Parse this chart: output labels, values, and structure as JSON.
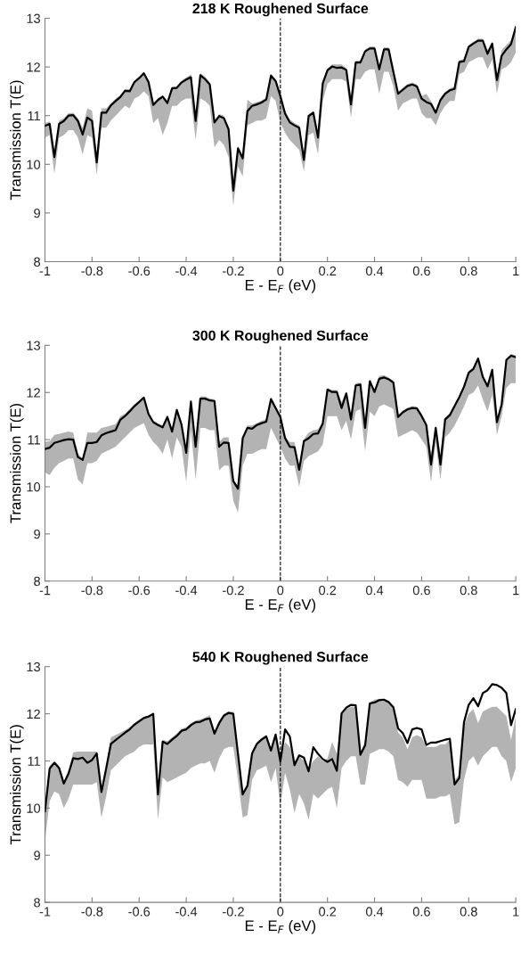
{
  "chart_data": [
    {
      "type": "line",
      "title": "218 K Roughened Surface",
      "xlabel": "E - E$_{F}$ (eV)",
      "ylabel": "Transmission T(E)",
      "x": [
        -1,
        -0.98,
        -0.96,
        -0.94,
        -0.92,
        -0.9,
        -0.88,
        -0.86,
        -0.84,
        -0.82,
        -0.8,
        -0.78,
        -0.76,
        -0.74,
        -0.72,
        -0.7,
        -0.68,
        -0.66,
        -0.64,
        -0.62,
        -0.6,
        -0.58,
        -0.56,
        -0.54,
        -0.52,
        -0.5,
        -0.48,
        -0.46,
        -0.44,
        -0.42,
        -0.4,
        -0.38,
        -0.36,
        -0.34,
        -0.32,
        -0.3,
        -0.28,
        -0.26,
        -0.24,
        -0.22,
        -0.2,
        -0.18,
        -0.16,
        -0.14,
        -0.12,
        -0.1,
        -0.08,
        -0.06,
        -0.04,
        -0.02,
        0,
        0.02,
        0.04,
        0.06,
        0.08,
        0.1,
        0.12,
        0.14,
        0.16,
        0.18,
        0.2,
        0.22,
        0.24,
        0.26,
        0.28,
        0.3,
        0.32,
        0.34,
        0.36,
        0.38,
        0.4,
        0.42,
        0.44,
        0.46,
        0.48,
        0.5,
        0.52,
        0.54,
        0.56,
        0.58,
        0.6,
        0.62,
        0.64,
        0.66,
        0.68,
        0.7,
        0.72,
        0.74,
        0.76,
        0.78,
        0.8,
        0.82,
        0.84,
        0.86,
        0.88,
        0.9,
        0.92,
        0.94,
        0.96,
        0.98,
        1
      ],
      "series": [
        {
          "color": "#000000",
          "values": [
            10.79,
            10.83,
            10.15,
            10.83,
            10.89,
            11.0,
            11.01,
            10.89,
            10.61,
            10.96,
            10.89,
            10.04,
            11.06,
            11.06,
            11.21,
            11.3,
            11.38,
            11.51,
            11.5,
            11.69,
            11.77,
            11.87,
            11.69,
            11.22,
            11.32,
            11.39,
            11.26,
            11.56,
            11.57,
            11.68,
            11.74,
            11.79,
            10.89,
            11.83,
            11.75,
            11.64,
            10.86,
            10.99,
            10.95,
            10.72,
            9.46,
            10.33,
            10.12,
            11.09,
            11.2,
            11.23,
            11.27,
            11.33,
            11.82,
            11.71,
            11.4,
            11.04,
            10.86,
            10.8,
            10.75,
            10.09,
            10.99,
            11.06,
            10.55,
            11.66,
            11.93,
            12.01,
            11.98,
            11.99,
            11.94,
            11.23,
            12.09,
            12.09,
            12.32,
            12.38,
            12.38,
            11.95,
            12.36,
            12.36,
            11.9,
            11.45,
            11.53,
            11.61,
            11.64,
            11.6,
            11.35,
            11.28,
            11.24,
            11.06,
            11.32,
            11.45,
            11.52,
            11.55,
            12.1,
            12.12,
            12.41,
            12.48,
            12.54,
            12.54,
            12.27,
            12.48,
            11.73,
            12.23,
            12.36,
            12.47,
            12.82
          ],
          "lower": [
            10.55,
            10.6,
            9.8,
            10.55,
            10.6,
            10.7,
            10.7,
            10.55,
            10.2,
            10.6,
            10.55,
            9.78,
            10.75,
            10.75,
            10.9,
            11.0,
            11.1,
            11.2,
            11.15,
            11.35,
            11.4,
            11.5,
            11.4,
            10.85,
            10.95,
            10.6,
            10.85,
            11.2,
            11.2,
            11.3,
            11.35,
            11.35,
            10.5,
            11.35,
            11.3,
            11.2,
            10.35,
            10.5,
            10.4,
            10.15,
            9.15,
            9.95,
            9.75,
            10.8,
            10.85,
            10.9,
            10.9,
            10.95,
            11.4,
            11.3,
            10.85,
            10.65,
            10.5,
            10.4,
            10.3,
            9.85,
            10.6,
            10.65,
            10.2,
            11.3,
            11.65,
            11.75,
            11.75,
            11.75,
            11.7,
            10.95,
            11.75,
            11.75,
            11.9,
            11.95,
            11.95,
            11.45,
            11.9,
            11.9,
            11.6,
            11.1,
            11.25,
            11.3,
            11.35,
            11.35,
            11.05,
            10.95,
            10.95,
            10.8,
            11.05,
            11.2,
            11.3,
            11.3,
            11.85,
            11.9,
            12.1,
            12.15,
            12.2,
            12.2,
            11.95,
            12.15,
            11.45,
            11.95,
            12.0,
            12.1,
            12.3
          ],
          "upper": [
            10.85,
            10.88,
            10.2,
            10.9,
            10.95,
            11.05,
            11.06,
            10.95,
            10.75,
            11.15,
            11.1,
            10.1,
            11.15,
            11.15,
            11.25,
            11.35,
            11.42,
            11.55,
            11.55,
            11.72,
            11.8,
            11.9,
            11.72,
            11.26,
            11.36,
            11.42,
            11.3,
            11.6,
            11.6,
            11.72,
            11.78,
            11.85,
            10.93,
            11.87,
            11.8,
            11.68,
            10.9,
            11.03,
            11.0,
            10.76,
            9.5,
            10.37,
            10.16,
            11.33,
            11.25,
            11.28,
            11.31,
            11.37,
            11.86,
            11.75,
            11.44,
            11.1,
            10.92,
            10.85,
            10.8,
            10.13,
            11.03,
            11.1,
            10.6,
            11.7,
            11.97,
            12.05,
            12.05,
            12.05,
            11.98,
            11.27,
            12.13,
            12.13,
            12.36,
            12.42,
            12.42,
            11.99,
            12.4,
            12.4,
            11.94,
            11.49,
            11.57,
            11.65,
            11.68,
            11.64,
            11.4,
            11.45,
            11.3,
            11.1,
            11.36,
            11.49,
            11.56,
            11.6,
            12.14,
            12.16,
            12.45,
            12.52,
            12.58,
            12.58,
            12.35,
            12.52,
            11.77,
            12.35,
            12.45,
            12.55,
            12.85
          ]
        }
      ],
      "xlim": [
        -1,
        1
      ],
      "ylim": [
        8,
        13
      ],
      "xticks": [
        -1,
        -0.8,
        -0.6,
        -0.4,
        -0.2,
        0,
        0.2,
        0.4,
        0.6,
        0.8,
        1
      ],
      "yticks": [
        8,
        9,
        10,
        11,
        12,
        13
      ],
      "ref_lines": [
        {
          "axis": "x",
          "value": 0,
          "color": "#000000",
          "line_style": "dashed"
        }
      ],
      "grid": false,
      "legend": false
    },
    {
      "type": "line",
      "title": "300 K Roughened Surface",
      "xlabel": "E - E$_{F}$ (eV)",
      "ylabel": "Transmission T(E)",
      "x": [
        -1,
        -0.98,
        -0.96,
        -0.94,
        -0.92,
        -0.9,
        -0.88,
        -0.86,
        -0.84,
        -0.82,
        -0.8,
        -0.78,
        -0.76,
        -0.74,
        -0.72,
        -0.7,
        -0.68,
        -0.66,
        -0.64,
        -0.62,
        -0.6,
        -0.58,
        -0.56,
        -0.54,
        -0.52,
        -0.5,
        -0.48,
        -0.46,
        -0.44,
        -0.42,
        -0.4,
        -0.38,
        -0.36,
        -0.34,
        -0.32,
        -0.3,
        -0.28,
        -0.26,
        -0.24,
        -0.22,
        -0.2,
        -0.18,
        -0.16,
        -0.14,
        -0.12,
        -0.1,
        -0.08,
        -0.06,
        -0.04,
        -0.02,
        0,
        0.02,
        0.04,
        0.06,
        0.08,
        0.1,
        0.12,
        0.14,
        0.16,
        0.18,
        0.2,
        0.22,
        0.24,
        0.26,
        0.28,
        0.3,
        0.32,
        0.34,
        0.36,
        0.38,
        0.4,
        0.42,
        0.44,
        0.46,
        0.48,
        0.5,
        0.52,
        0.54,
        0.56,
        0.58,
        0.6,
        0.62,
        0.64,
        0.66,
        0.68,
        0.7,
        0.72,
        0.74,
        0.76,
        0.78,
        0.8,
        0.82,
        0.84,
        0.86,
        0.88,
        0.9,
        0.92,
        0.94,
        0.96,
        0.98,
        1
      ],
      "series": [
        {
          "color": "#000000",
          "values": [
            10.8,
            10.83,
            10.93,
            10.96,
            10.99,
            11.01,
            11.0,
            10.63,
            10.57,
            10.93,
            10.93,
            10.95,
            11.09,
            11.14,
            11.17,
            11.2,
            11.42,
            11.5,
            11.6,
            11.71,
            11.8,
            11.89,
            11.54,
            11.37,
            11.31,
            11.26,
            11.48,
            11.17,
            11.63,
            11.32,
            10.72,
            11.81,
            10.85,
            11.87,
            11.87,
            11.83,
            11.82,
            10.85,
            10.94,
            10.93,
            10.12,
            9.96,
            11.03,
            11.25,
            11.23,
            11.31,
            11.35,
            11.38,
            11.86,
            11.67,
            11.48,
            11.03,
            10.85,
            10.84,
            10.36,
            10.97,
            11.03,
            11.12,
            11.13,
            11.34,
            12.06,
            12.01,
            12.01,
            11.67,
            11.98,
            11.43,
            12.15,
            12.17,
            11.25,
            12.24,
            12.01,
            12.29,
            12.32,
            12.28,
            12.21,
            11.48,
            11.58,
            11.64,
            11.67,
            11.66,
            11.5,
            11.31,
            10.47,
            11.25,
            10.47,
            11.43,
            11.52,
            11.71,
            11.9,
            12.12,
            12.42,
            12.5,
            12.72,
            12.33,
            12.13,
            12.48,
            11.37,
            11.75,
            12.69,
            12.78,
            12.75
          ],
          "lower": [
            10.3,
            10.25,
            10.4,
            10.5,
            10.55,
            10.6,
            10.6,
            10.15,
            10.05,
            10.5,
            10.5,
            10.55,
            10.7,
            10.75,
            10.8,
            10.85,
            10.95,
            11.05,
            11.15,
            11.25,
            11.3,
            11.35,
            11.1,
            10.95,
            10.85,
            10.7,
            11.0,
            10.6,
            11.05,
            10.85,
            10.1,
            11.2,
            10.15,
            11.25,
            11.25,
            11.2,
            11.2,
            10.35,
            10.45,
            10.45,
            9.7,
            9.45,
            10.45,
            10.7,
            10.7,
            10.75,
            10.8,
            10.8,
            11.25,
            11.05,
            10.85,
            10.6,
            10.45,
            10.45,
            10.0,
            10.55,
            10.65,
            10.7,
            10.75,
            10.9,
            11.5,
            11.5,
            11.5,
            11.2,
            11.4,
            11.0,
            11.6,
            11.65,
            10.75,
            11.6,
            11.5,
            11.7,
            11.75,
            11.7,
            11.65,
            11.05,
            11.1,
            11.15,
            11.2,
            11.15,
            11.0,
            10.85,
            10.1,
            10.95,
            10.15,
            11.05,
            11.15,
            11.3,
            11.5,
            11.7,
            11.95,
            12.0,
            12.15,
            11.85,
            11.6,
            11.95,
            11.1,
            11.5,
            12.1,
            12.2,
            12.2
          ],
          "upper": [
            10.95,
            10.97,
            11.1,
            11.12,
            11.15,
            11.17,
            11.15,
            10.7,
            10.6,
            11.15,
            11.15,
            11.15,
            11.25,
            11.27,
            11.3,
            11.33,
            11.5,
            11.55,
            11.65,
            11.75,
            11.83,
            11.92,
            11.57,
            11.4,
            11.35,
            11.3,
            11.52,
            11.22,
            11.67,
            11.36,
            10.76,
            11.85,
            10.89,
            11.92,
            11.92,
            11.87,
            11.86,
            10.95,
            11.05,
            11.05,
            10.16,
            10.0,
            11.07,
            11.3,
            11.3,
            11.35,
            11.4,
            11.43,
            11.9,
            11.71,
            11.52,
            11.07,
            10.95,
            10.95,
            10.4,
            11.01,
            11.15,
            11.2,
            11.22,
            11.38,
            12.1,
            12.05,
            12.05,
            11.8,
            12.02,
            11.47,
            12.2,
            12.21,
            11.29,
            12.28,
            12.05,
            12.35,
            12.37,
            12.32,
            12.25,
            11.52,
            11.62,
            11.68,
            11.71,
            11.7,
            11.54,
            11.35,
            10.7,
            11.29,
            10.7,
            11.47,
            11.56,
            11.75,
            11.94,
            12.16,
            12.46,
            12.54,
            12.76,
            12.37,
            12.17,
            12.52,
            11.41,
            11.79,
            12.73,
            12.82,
            12.79
          ]
        }
      ],
      "xlim": [
        -1,
        1
      ],
      "ylim": [
        8,
        13
      ],
      "xticks": [
        -1,
        -0.8,
        -0.6,
        -0.4,
        -0.2,
        0,
        0.2,
        0.4,
        0.6,
        0.8,
        1
      ],
      "yticks": [
        8,
        9,
        10,
        11,
        12,
        13
      ],
      "ref_lines": [
        {
          "axis": "x",
          "value": 0,
          "color": "#000000",
          "line_style": "dashed"
        }
      ],
      "grid": false,
      "legend": false
    },
    {
      "type": "line",
      "title": "540 K Roughened Surface",
      "xlabel": "E - E$_{F}$ (eV)",
      "ylabel": "Transmission T(E)",
      "x": [
        -1,
        -0.98,
        -0.96,
        -0.94,
        -0.92,
        -0.9,
        -0.88,
        -0.86,
        -0.84,
        -0.82,
        -0.8,
        -0.78,
        -0.76,
        -0.74,
        -0.72,
        -0.7,
        -0.68,
        -0.66,
        -0.64,
        -0.62,
        -0.6,
        -0.58,
        -0.56,
        -0.54,
        -0.52,
        -0.5,
        -0.48,
        -0.46,
        -0.44,
        -0.42,
        -0.4,
        -0.38,
        -0.36,
        -0.34,
        -0.32,
        -0.3,
        -0.28,
        -0.26,
        -0.24,
        -0.22,
        -0.2,
        -0.18,
        -0.16,
        -0.14,
        -0.12,
        -0.1,
        -0.08,
        -0.06,
        -0.04,
        -0.02,
        0,
        0.02,
        0.04,
        0.06,
        0.08,
        0.1,
        0.12,
        0.14,
        0.16,
        0.18,
        0.2,
        0.22,
        0.24,
        0.26,
        0.28,
        0.3,
        0.32,
        0.34,
        0.36,
        0.38,
        0.4,
        0.42,
        0.44,
        0.46,
        0.48,
        0.5,
        0.52,
        0.54,
        0.56,
        0.58,
        0.6,
        0.62,
        0.64,
        0.66,
        0.68,
        0.7,
        0.72,
        0.74,
        0.76,
        0.78,
        0.8,
        0.82,
        0.84,
        0.86,
        0.88,
        0.9,
        0.92,
        0.94,
        0.96,
        0.98,
        1
      ],
      "series": [
        {
          "color": "#000000",
          "values": [
            9.93,
            10.84,
            10.96,
            10.85,
            10.52,
            10.73,
            11.06,
            11.04,
            11.07,
            10.96,
            11.02,
            11.16,
            10.34,
            10.84,
            11.36,
            11.44,
            11.52,
            11.6,
            11.67,
            11.77,
            11.84,
            11.91,
            11.94,
            12.0,
            10.29,
            11.41,
            11.36,
            11.45,
            11.53,
            11.64,
            11.67,
            11.76,
            11.82,
            11.83,
            11.88,
            11.9,
            11.58,
            11.8,
            11.96,
            12.02,
            12.0,
            11.15,
            10.29,
            10.47,
            11.16,
            11.36,
            11.45,
            11.52,
            11.22,
            11.56,
            10.99,
            11.67,
            11.52,
            10.91,
            11.12,
            11.07,
            10.78,
            11.29,
            11.15,
            11.04,
            10.98,
            11.04,
            10.79,
            12.01,
            12.13,
            12.19,
            12.18,
            11.13,
            11.33,
            12.22,
            12.24,
            12.29,
            12.3,
            12.25,
            12.14,
            11.69,
            11.59,
            11.38,
            11.67,
            11.7,
            11.67,
            11.34,
            11.39,
            11.39,
            11.42,
            11.45,
            11.47,
            10.5,
            10.64,
            11.82,
            12.19,
            12.33,
            12.16,
            12.44,
            12.5,
            12.63,
            12.61,
            12.55,
            12.44,
            11.76,
            12.1
          ],
          "lower": [
            9.3,
            10.15,
            10.35,
            10.3,
            10.0,
            10.2,
            10.5,
            10.5,
            10.5,
            10.5,
            10.5,
            10.55,
            9.8,
            10.25,
            10.8,
            10.9,
            11.0,
            11.1,
            11.15,
            11.2,
            11.3,
            11.35,
            11.35,
            11.35,
            9.75,
            10.65,
            10.55,
            10.6,
            10.65,
            10.7,
            10.75,
            10.85,
            10.9,
            10.95,
            10.95,
            11.0,
            10.75,
            11.05,
            11.25,
            11.3,
            11.3,
            10.6,
            9.8,
            9.85,
            10.6,
            10.8,
            10.85,
            10.9,
            10.55,
            10.85,
            10.05,
            10.75,
            10.4,
            9.9,
            10.3,
            10.1,
            9.75,
            10.3,
            10.2,
            10.3,
            10.4,
            10.45,
            10.0,
            10.85,
            11.0,
            11.1,
            11.1,
            10.5,
            10.5,
            11.15,
            11.2,
            11.25,
            11.25,
            11.2,
            11.1,
            10.6,
            10.55,
            10.45,
            10.6,
            10.6,
            10.6,
            10.2,
            10.2,
            10.2,
            10.25,
            10.25,
            10.3,
            9.65,
            9.7,
            10.6,
            11.0,
            11.1,
            10.9,
            11.1,
            11.2,
            11.3,
            11.3,
            11.1,
            11.0,
            10.55,
            10.85
          ],
          "upper": [
            9.98,
            10.9,
            11.0,
            10.9,
            10.57,
            10.8,
            11.18,
            11.2,
            11.2,
            11.2,
            11.2,
            11.2,
            10.4,
            10.9,
            11.5,
            11.55,
            11.6,
            11.65,
            11.72,
            11.8,
            11.88,
            11.94,
            11.97,
            12.02,
            10.35,
            11.45,
            11.42,
            11.5,
            11.58,
            11.68,
            11.72,
            11.8,
            11.86,
            11.88,
            11.92,
            11.97,
            11.62,
            11.85,
            12.0,
            12.05,
            12.04,
            11.2,
            10.35,
            10.52,
            11.2,
            11.4,
            11.49,
            11.55,
            11.26,
            11.55,
            11.1,
            11.4,
            11.3,
            11.0,
            11.1,
            11.0,
            10.85,
            11.0,
            11.1,
            11.0,
            11.05,
            11.4,
            11.15,
            12.0,
            12.1,
            12.15,
            12.15,
            11.2,
            11.4,
            12.25,
            12.3,
            12.32,
            12.32,
            12.27,
            12.1,
            11.6,
            11.5,
            11.25,
            11.5,
            11.55,
            11.5,
            11.3,
            11.3,
            11.3,
            11.35,
            11.35,
            11.45,
            10.6,
            10.7,
            11.75,
            12.0,
            12.1,
            11.8,
            12.05,
            12.1,
            12.15,
            12.15,
            12.05,
            11.95,
            11.45,
            11.95
          ]
        }
      ],
      "xlim": [
        -1,
        1
      ],
      "ylim": [
        8,
        13
      ],
      "xticks": [
        -1,
        -0.8,
        -0.6,
        -0.4,
        -0.2,
        0,
        0.2,
        0.4,
        0.6,
        0.8,
        1
      ],
      "yticks": [
        8,
        9,
        10,
        11,
        12,
        13
      ],
      "ref_lines": [
        {
          "axis": "x",
          "value": 0,
          "color": "#000000",
          "line_style": "dashed"
        }
      ],
      "grid": false,
      "legend": false
    }
  ]
}
